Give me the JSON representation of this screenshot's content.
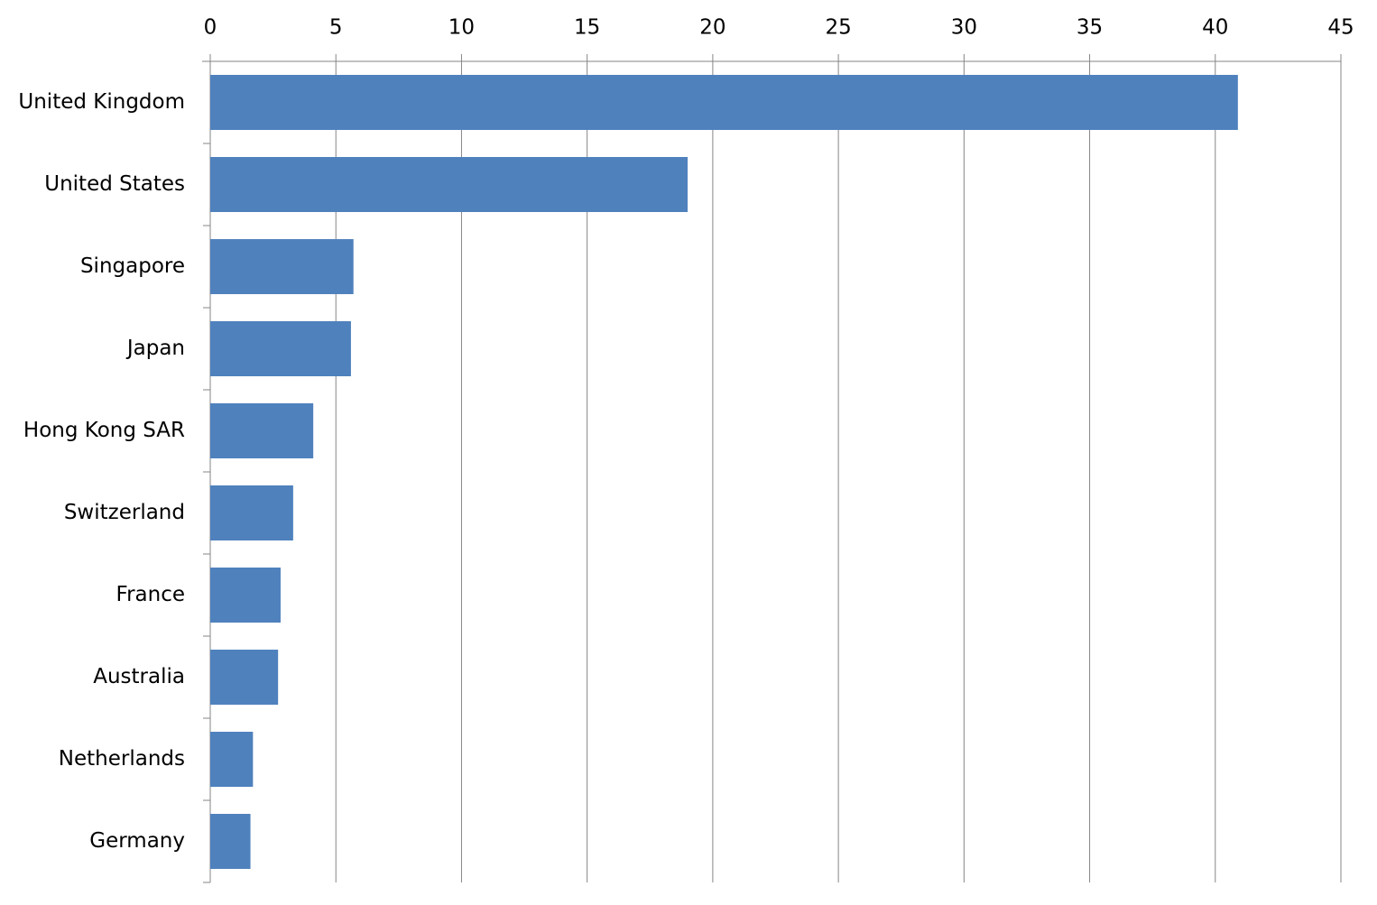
{
  "chart_data": {
    "type": "hbar",
    "categories": [
      "United Kingdom",
      "United States",
      "Singapore",
      "Japan",
      "Hong Kong SAR",
      "Switzerland",
      "France",
      "Australia",
      "Netherlands",
      "Germany"
    ],
    "values": [
      40.9,
      19.0,
      5.7,
      5.6,
      4.1,
      3.3,
      2.8,
      2.7,
      1.7,
      1.6
    ],
    "color": "#4f81bd",
    "xlim": [
      0,
      45
    ],
    "xticks": [
      0,
      5,
      10,
      15,
      20,
      25,
      30,
      35,
      40,
      45
    ],
    "grid": true
  }
}
